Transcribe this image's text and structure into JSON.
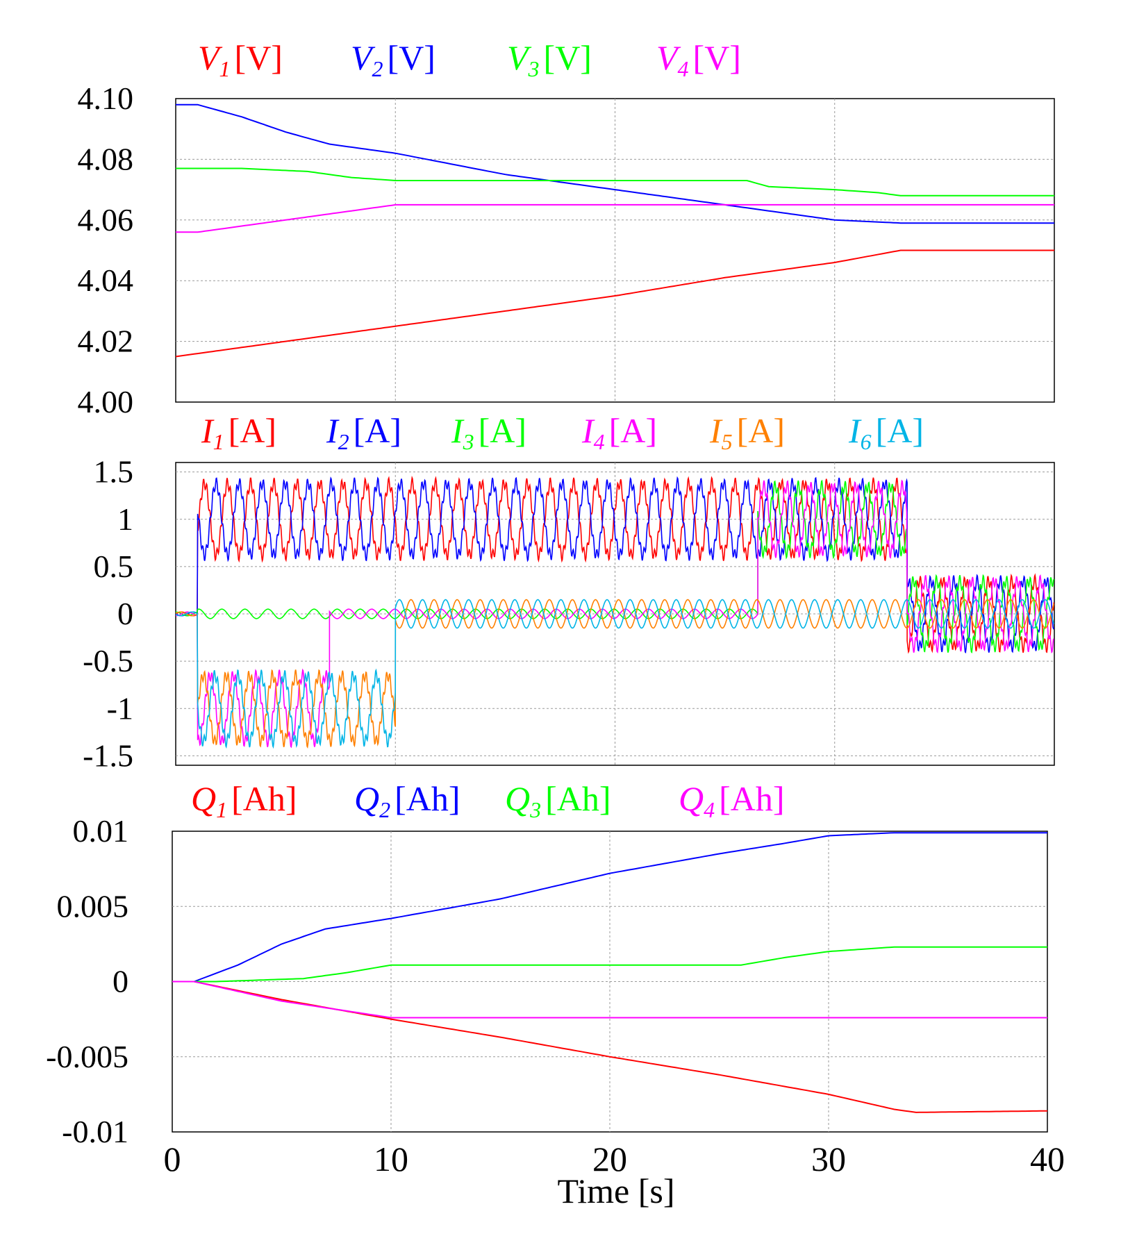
{
  "chart_data": [
    {
      "type": "line",
      "panel": "voltage",
      "xlim": [
        0,
        40
      ],
      "ylim": [
        4.0,
        4.1
      ],
      "yticks": [
        {
          "v": 4.1,
          "label": "4.10"
        },
        {
          "v": 4.08,
          "label": "4.08"
        },
        {
          "v": 4.06,
          "label": "4.06"
        },
        {
          "v": 4.04,
          "label": "4.04"
        },
        {
          "v": 4.02,
          "label": "4.02"
        },
        {
          "v": 4.0,
          "label": "4.00"
        }
      ],
      "grid": true,
      "series": [
        {
          "name": "V1",
          "sym": "V",
          "sub": "1",
          "unit": "[V]",
          "color": "#ff0000",
          "points": [
            [
              0,
              4.015
            ],
            [
              1,
              4.016
            ],
            [
              5,
              4.02
            ],
            [
              10,
              4.025
            ],
            [
              15,
              4.03
            ],
            [
              20,
              4.035
            ],
            [
              25,
              4.041
            ],
            [
              30,
              4.046
            ],
            [
              33,
              4.05
            ],
            [
              40,
              4.05
            ]
          ]
        },
        {
          "name": "V2",
          "sym": "V",
          "sub": "2",
          "unit": "[V]",
          "color": "#0000ff",
          "points": [
            [
              0,
              4.098
            ],
            [
              1,
              4.098
            ],
            [
              3,
              4.094
            ],
            [
              5,
              4.089
            ],
            [
              7,
              4.085
            ],
            [
              10,
              4.082
            ],
            [
              15,
              4.075
            ],
            [
              20,
              4.07
            ],
            [
              25,
              4.065
            ],
            [
              28,
              4.062
            ],
            [
              30,
              4.06
            ],
            [
              33,
              4.059
            ],
            [
              40,
              4.059
            ]
          ]
        },
        {
          "name": "V3",
          "sym": "V",
          "sub": "3",
          "unit": "[V]",
          "color": "#00ff00",
          "points": [
            [
              0,
              4.077
            ],
            [
              3,
              4.077
            ],
            [
              6,
              4.076
            ],
            [
              8,
              4.074
            ],
            [
              10,
              4.073
            ],
            [
              15,
              4.073
            ],
            [
              20,
              4.073
            ],
            [
              26,
              4.073
            ],
            [
              27,
              4.071
            ],
            [
              30,
              4.07
            ],
            [
              32,
              4.069
            ],
            [
              33,
              4.068
            ],
            [
              40,
              4.068
            ]
          ]
        },
        {
          "name": "V4",
          "sym": "V",
          "sub": "4",
          "unit": "[V]",
          "color": "#ff00ff",
          "points": [
            [
              0,
              4.056
            ],
            [
              1,
              4.056
            ],
            [
              4,
              4.059
            ],
            [
              7,
              4.062
            ],
            [
              10,
              4.065
            ],
            [
              15,
              4.065
            ],
            [
              20,
              4.065
            ],
            [
              30,
              4.065
            ],
            [
              40,
              4.065
            ]
          ]
        }
      ]
    },
    {
      "type": "line",
      "panel": "current",
      "xlim": [
        0,
        40
      ],
      "ylim": [
        -1.6,
        1.6
      ],
      "yticks": [
        {
          "v": 1.5,
          "label": "1.5"
        },
        {
          "v": 1,
          "label": "1"
        },
        {
          "v": 0.5,
          "label": "0.5"
        },
        {
          "v": 0,
          "label": "0"
        },
        {
          "v": -0.5,
          "label": "-0.5"
        },
        {
          "v": -1,
          "label": "-1"
        },
        {
          "v": -1.5,
          "label": "-1.5"
        }
      ],
      "grid": true,
      "series": [
        {
          "name": "I1",
          "sym": "I",
          "sub": "1",
          "unit": "[A]",
          "color": "#ff0000",
          "segments": [
            [
              0,
              1,
              0,
              0.02
            ],
            [
              1,
              33.3,
              1.0,
              0.38
            ],
            [
              33.3,
              40,
              0,
              0.35
            ]
          ]
        },
        {
          "name": "I2",
          "sym": "I",
          "sub": "2",
          "unit": "[A]",
          "color": "#0000ff",
          "segments": [
            [
              0,
              1,
              0,
              0.02
            ],
            [
              1,
              33.3,
              1.0,
              0.38
            ],
            [
              33.3,
              40,
              0,
              0.35
            ]
          ]
        },
        {
          "name": "I3",
          "sym": "I",
          "sub": "3",
          "unit": "[A]",
          "color": "#00ff00",
          "segments": [
            [
              0,
              1,
              0,
              0.02
            ],
            [
              1,
              26.5,
              0,
              0.05
            ],
            [
              26.5,
              33.3,
              1.0,
              0.35
            ],
            [
              33.3,
              40,
              0,
              0.35
            ]
          ]
        },
        {
          "name": "I4",
          "sym": "I",
          "sub": "4",
          "unit": "[A]",
          "color": "#ff00ff",
          "segments": [
            [
              0,
              1,
              0,
              0.02
            ],
            [
              1,
              7,
              -1.0,
              0.35
            ],
            [
              7,
              26.5,
              0,
              0.05
            ],
            [
              26.5,
              33.3,
              1.0,
              0.35
            ],
            [
              33.3,
              40,
              0,
              0.35
            ]
          ]
        },
        {
          "name": "I5",
          "sym": "I",
          "sub": "5",
          "unit": "[A]",
          "color": "#ff8000",
          "segments": [
            [
              0,
              1,
              0,
              0.02
            ],
            [
              1,
              10,
              -1.0,
              0.35
            ],
            [
              10,
              40,
              0,
              0.15
            ]
          ]
        },
        {
          "name": "I6",
          "sym": "I",
          "sub": "6",
          "unit": "[A]",
          "color": "#00b4e6",
          "segments": [
            [
              0,
              1,
              0,
              0.02
            ],
            [
              1,
              10,
              -1.0,
              0.35
            ],
            [
              10,
              40,
              0,
              0.15
            ]
          ]
        }
      ]
    },
    {
      "type": "line",
      "panel": "charge",
      "xlim": [
        0,
        40
      ],
      "ylim": [
        -0.01,
        0.01
      ],
      "yticks": [
        {
          "v": 0.01,
          "label": "0.01"
        },
        {
          "v": 0.005,
          "label": "0.005"
        },
        {
          "v": 0,
          "label": "0"
        },
        {
          "v": -0.005,
          "label": "-0.005"
        },
        {
          "v": -0.01,
          "label": "-0.01"
        }
      ],
      "grid": true,
      "xticks": [
        {
          "v": 0,
          "label": "0"
        },
        {
          "v": 10,
          "label": "10"
        },
        {
          "v": 20,
          "label": "20"
        },
        {
          "v": 30,
          "label": "30"
        },
        {
          "v": 40,
          "label": "40"
        }
      ],
      "xlabel": "Time [s]",
      "series": [
        {
          "name": "Q1",
          "sym": "Q",
          "sub": "1",
          "unit": "[Ah]",
          "color": "#ff0000",
          "points": [
            [
              0,
              0
            ],
            [
              1,
              0
            ],
            [
              5,
              -0.0012
            ],
            [
              10,
              -0.0025
            ],
            [
              15,
              -0.0037
            ],
            [
              20,
              -0.005
            ],
            [
              25,
              -0.0062
            ],
            [
              30,
              -0.0075
            ],
            [
              33,
              -0.0085
            ],
            [
              34,
              -0.0087
            ],
            [
              40,
              -0.0086
            ]
          ]
        },
        {
          "name": "Q2",
          "sym": "Q",
          "sub": "2",
          "unit": "[Ah]",
          "color": "#0000ff",
          "points": [
            [
              0,
              0
            ],
            [
              1,
              0
            ],
            [
              3,
              0.0011
            ],
            [
              5,
              0.0025
            ],
            [
              7,
              0.0035
            ],
            [
              10,
              0.0042
            ],
            [
              15,
              0.0055
            ],
            [
              20,
              0.0072
            ],
            [
              25,
              0.0085
            ],
            [
              28,
              0.0092
            ],
            [
              30,
              0.0097
            ],
            [
              33,
              0.0099
            ],
            [
              40,
              0.0099
            ]
          ]
        },
        {
          "name": "Q3",
          "sym": "Q",
          "sub": "3",
          "unit": "[Ah]",
          "color": "#00ff00",
          "points": [
            [
              0,
              0
            ],
            [
              2,
              0
            ],
            [
              6,
              0.0002
            ],
            [
              8,
              0.0006
            ],
            [
              10,
              0.0011
            ],
            [
              15,
              0.0011
            ],
            [
              20,
              0.0011
            ],
            [
              26,
              0.0011
            ],
            [
              28,
              0.0016
            ],
            [
              30,
              0.002
            ],
            [
              33,
              0.0023
            ],
            [
              40,
              0.0023
            ]
          ]
        },
        {
          "name": "Q4",
          "sym": "Q",
          "sub": "4",
          "unit": "[Ah]",
          "color": "#ff00ff",
          "points": [
            [
              0,
              0
            ],
            [
              1,
              0
            ],
            [
              5,
              -0.0013
            ],
            [
              10,
              -0.0024
            ],
            [
              15,
              -0.0024
            ],
            [
              20,
              -0.0024
            ],
            [
              30,
              -0.0024
            ],
            [
              40,
              -0.0024
            ]
          ]
        }
      ]
    }
  ]
}
